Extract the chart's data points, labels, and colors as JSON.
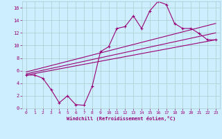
{
  "background_color": "#cceeff",
  "grid_color": "#aacccc",
  "line_color": "#990077",
  "xlim": [
    -0.5,
    23.5
  ],
  "ylim": [
    0,
    17
  ],
  "xticks": [
    0,
    1,
    2,
    3,
    4,
    5,
    6,
    7,
    8,
    9,
    10,
    11,
    12,
    13,
    14,
    15,
    16,
    17,
    18,
    19,
    20,
    21,
    22,
    23
  ],
  "yticks": [
    0,
    2,
    4,
    6,
    8,
    10,
    12,
    14,
    16
  ],
  "curve_x": [
    0,
    1,
    2,
    3,
    4,
    5,
    6,
    7,
    8,
    9,
    10,
    11,
    12,
    13,
    14,
    15,
    16,
    17,
    18,
    19,
    20,
    21,
    22,
    23
  ],
  "curve_y": [
    5.3,
    5.3,
    4.8,
    3.0,
    0.9,
    2.0,
    0.6,
    0.5,
    3.5,
    9.0,
    9.8,
    12.7,
    13.0,
    14.7,
    12.7,
    15.5,
    17.0,
    16.5,
    13.5,
    12.7,
    12.7,
    11.9,
    10.9,
    10.9
  ],
  "line1_x": [
    0,
    23
  ],
  "line1_y": [
    5.3,
    10.9
  ],
  "line2_x": [
    0,
    23
  ],
  "line2_y": [
    5.5,
    12.0
  ],
  "line3_x": [
    0,
    23
  ],
  "line3_y": [
    5.8,
    13.5
  ],
  "xlabel": "Windchill (Refroidissement éolien,°C)",
  "figsize": [
    3.2,
    2.0
  ],
  "dpi": 100
}
